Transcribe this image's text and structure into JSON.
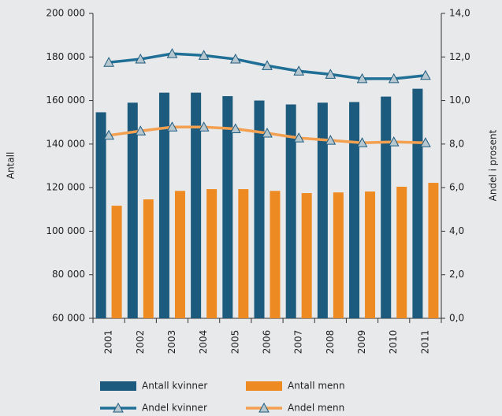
{
  "chart_data": {
    "type": "bar",
    "categories": [
      "2001",
      "2002",
      "2003",
      "2004",
      "2005",
      "2006",
      "2007",
      "2008",
      "2009",
      "2010",
      "2011"
    ],
    "ylabel": "Antall",
    "y2label": "Andel i prosent",
    "ylim": [
      60000,
      200000
    ],
    "yticks": [
      {
        "value": 60000,
        "label": "60 000"
      },
      {
        "value": 80000,
        "label": "80 000"
      },
      {
        "value": 100000,
        "label": "100 000"
      },
      {
        "value": 120000,
        "label": "120 000"
      },
      {
        "value": 140000,
        "label": "140 000"
      },
      {
        "value": 160000,
        "label": "160 000"
      },
      {
        "value": 180000,
        "label": "180 000"
      },
      {
        "value": 200000,
        "label": "200 000"
      }
    ],
    "y2lim": [
      0,
      14
    ],
    "y2ticks": [
      {
        "value": 0,
        "label": "0,0"
      },
      {
        "value": 2,
        "label": "2,0"
      },
      {
        "value": 4,
        "label": "4,0"
      },
      {
        "value": 6,
        "label": "6,0"
      },
      {
        "value": 8,
        "label": "8,0"
      },
      {
        "value": 10,
        "label": "10,0"
      },
      {
        "value": 12,
        "label": "12,0"
      },
      {
        "value": 14,
        "label": "14,0"
      }
    ],
    "series": [
      {
        "name": "Antall kvinner",
        "color": "#1d5b7e",
        "values": [
          154600,
          159000,
          163600,
          163600,
          162000,
          160000,
          158200,
          159000,
          159300,
          161800,
          165400
        ]
      },
      {
        "name": "Antall menn",
        "color": "#ee8a22",
        "values": [
          111700,
          114600,
          118500,
          119300,
          119300,
          118500,
          117500,
          117800,
          118200,
          120400,
          122200
        ]
      },
      {
        "name": "Andel kvinner",
        "color": "#1f6f96",
        "axis": "y2",
        "values": [
          11.75,
          11.9,
          12.15,
          12.07,
          11.9,
          11.6,
          11.35,
          11.2,
          11.0,
          11.0,
          11.15
        ]
      },
      {
        "name": "Andel menn",
        "color": "#f3a050",
        "axis": "y2",
        "values": [
          8.4,
          8.6,
          8.78,
          8.78,
          8.7,
          8.5,
          8.28,
          8.17,
          8.06,
          8.1,
          8.06
        ]
      }
    ]
  }
}
